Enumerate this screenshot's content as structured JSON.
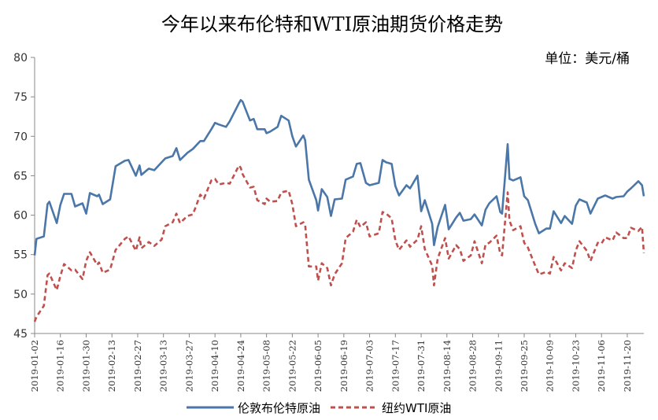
{
  "chart_data": {
    "type": "line",
    "title": "今年以来布伦特和WTI原油期货价格走势",
    "unit_label": "单位：美元/桶",
    "ylim": [
      45,
      80
    ],
    "yticks": [
      "45",
      "50",
      "55",
      "60",
      "65",
      "70",
      "75",
      "80"
    ],
    "xlim": [
      "2019-01-02",
      "2019-11-29"
    ],
    "xticks": [
      "2019-01-02",
      "2019-01-16",
      "2019-01-30",
      "2019-02-13",
      "2019-02-27",
      "2019-03-13",
      "2019-03-27",
      "2019-04-10",
      "2019-04-24",
      "2019-05-08",
      "2019-05-22",
      "2019-06-05",
      "2019-06-19",
      "2019-07-03",
      "2019-07-17",
      "2019-07-31",
      "2019-08-14",
      "2019-08-28",
      "2019-09-11",
      "2019-09-25",
      "2019-10-09",
      "2019-10-23",
      "2019-11-06",
      "2019-11-20"
    ],
    "grid": false,
    "legend": "bottom",
    "series": [
      {
        "name": "伦敦布伦特原油",
        "color": "#4a76a8",
        "style": "solid",
        "points": [
          [
            "2019-01-02",
            54.9
          ],
          [
            "2019-01-03",
            57.0
          ],
          [
            "2019-01-07",
            57.3
          ],
          [
            "2019-01-09",
            61.4
          ],
          [
            "2019-01-10",
            61.7
          ],
          [
            "2019-01-14",
            59.0
          ],
          [
            "2019-01-16",
            61.3
          ],
          [
            "2019-01-18",
            62.7
          ],
          [
            "2019-01-22",
            62.7
          ],
          [
            "2019-01-24",
            61.1
          ],
          [
            "2019-01-28",
            61.5
          ],
          [
            "2019-01-30",
            60.2
          ],
          [
            "2019-02-01",
            62.8
          ],
          [
            "2019-02-05",
            62.4
          ],
          [
            "2019-02-06",
            62.6
          ],
          [
            "2019-02-08",
            61.4
          ],
          [
            "2019-02-12",
            62.0
          ],
          [
            "2019-02-15",
            66.2
          ],
          [
            "2019-02-20",
            66.9
          ],
          [
            "2019-02-22",
            67.0
          ],
          [
            "2019-02-26",
            65.0
          ],
          [
            "2019-02-28",
            66.3
          ],
          [
            "2019-03-01",
            65.1
          ],
          [
            "2019-03-05",
            65.9
          ],
          [
            "2019-03-08",
            65.7
          ],
          [
            "2019-03-12",
            66.7
          ],
          [
            "2019-03-14",
            67.2
          ],
          [
            "2019-03-18",
            67.5
          ],
          [
            "2019-03-20",
            68.5
          ],
          [
            "2019-03-22",
            67.0
          ],
          [
            "2019-03-26",
            67.9
          ],
          [
            "2019-03-29",
            68.4
          ],
          [
            "2019-04-02",
            69.4
          ],
          [
            "2019-04-04",
            69.4
          ],
          [
            "2019-04-08",
            70.9
          ],
          [
            "2019-04-10",
            71.7
          ],
          [
            "2019-04-12",
            71.5
          ],
          [
            "2019-04-16",
            71.2
          ],
          [
            "2019-04-18",
            71.9
          ],
          [
            "2019-04-23",
            74.2
          ],
          [
            "2019-04-24",
            74.6
          ],
          [
            "2019-04-25",
            74.4
          ],
          [
            "2019-04-29",
            72.0
          ],
          [
            "2019-05-01",
            72.2
          ],
          [
            "2019-05-03",
            70.9
          ],
          [
            "2019-05-07",
            70.9
          ],
          [
            "2019-05-08",
            70.4
          ],
          [
            "2019-05-10",
            70.6
          ],
          [
            "2019-05-14",
            71.2
          ],
          [
            "2019-05-16",
            72.6
          ],
          [
            "2019-05-20",
            72.0
          ],
          [
            "2019-05-22",
            70.0
          ],
          [
            "2019-05-24",
            68.7
          ],
          [
            "2019-05-28",
            70.1
          ],
          [
            "2019-05-29",
            69.5
          ],
          [
            "2019-05-31",
            64.5
          ],
          [
            "2019-06-04",
            61.9
          ],
          [
            "2019-06-05",
            60.6
          ],
          [
            "2019-06-07",
            63.3
          ],
          [
            "2019-06-10",
            62.3
          ],
          [
            "2019-06-12",
            59.9
          ],
          [
            "2019-06-14",
            62.0
          ],
          [
            "2019-06-18",
            62.1
          ],
          [
            "2019-06-20",
            64.5
          ],
          [
            "2019-06-24",
            64.9
          ],
          [
            "2019-06-26",
            66.5
          ],
          [
            "2019-06-28",
            66.6
          ],
          [
            "2019-07-01",
            64.1
          ],
          [
            "2019-07-03",
            63.8
          ],
          [
            "2019-07-08",
            64.1
          ],
          [
            "2019-07-10",
            67.0
          ],
          [
            "2019-07-12",
            66.7
          ],
          [
            "2019-07-15",
            66.5
          ],
          [
            "2019-07-17",
            63.7
          ],
          [
            "2019-07-19",
            62.5
          ],
          [
            "2019-07-23",
            63.8
          ],
          [
            "2019-07-25",
            63.4
          ],
          [
            "2019-07-29",
            65.0
          ],
          [
            "2019-07-31",
            60.5
          ],
          [
            "2019-08-02",
            61.9
          ],
          [
            "2019-08-06",
            58.9
          ],
          [
            "2019-08-07",
            56.2
          ],
          [
            "2019-08-09",
            58.5
          ],
          [
            "2019-08-13",
            61.3
          ],
          [
            "2019-08-15",
            58.2
          ],
          [
            "2019-08-19",
            59.7
          ],
          [
            "2019-08-21",
            60.3
          ],
          [
            "2019-08-23",
            59.3
          ],
          [
            "2019-08-27",
            59.5
          ],
          [
            "2019-08-29",
            60.1
          ],
          [
            "2019-09-02",
            58.7
          ],
          [
            "2019-09-04",
            60.7
          ],
          [
            "2019-09-06",
            61.5
          ],
          [
            "2019-09-10",
            62.4
          ],
          [
            "2019-09-12",
            60.4
          ],
          [
            "2019-09-13",
            60.2
          ],
          [
            "2019-09-16",
            69.0
          ],
          [
            "2019-09-17",
            64.6
          ],
          [
            "2019-09-19",
            64.4
          ],
          [
            "2019-09-23",
            64.8
          ],
          [
            "2019-09-25",
            62.4
          ],
          [
            "2019-09-27",
            61.9
          ],
          [
            "2019-10-01",
            58.9
          ],
          [
            "2019-10-03",
            57.7
          ],
          [
            "2019-10-07",
            58.3
          ],
          [
            "2019-10-09",
            58.3
          ],
          [
            "2019-10-11",
            60.5
          ],
          [
            "2019-10-15",
            59.0
          ],
          [
            "2019-10-17",
            59.9
          ],
          [
            "2019-10-21",
            58.9
          ],
          [
            "2019-10-23",
            61.2
          ],
          [
            "2019-10-25",
            62.0
          ],
          [
            "2019-10-29",
            61.6
          ],
          [
            "2019-10-31",
            60.2
          ],
          [
            "2019-11-04",
            62.1
          ],
          [
            "2019-11-06",
            62.3
          ],
          [
            "2019-11-08",
            62.5
          ],
          [
            "2019-11-12",
            62.1
          ],
          [
            "2019-11-14",
            62.3
          ],
          [
            "2019-11-18",
            62.4
          ],
          [
            "2019-11-20",
            63.0
          ],
          [
            "2019-11-22",
            63.4
          ],
          [
            "2019-11-26",
            64.3
          ],
          [
            "2019-11-28",
            63.8
          ],
          [
            "2019-11-29",
            62.4
          ]
        ]
      },
      {
        "name": "纽约WTI原油",
        "color": "#c0504d",
        "style": "dashed",
        "points": [
          [
            "2019-01-02",
            46.5
          ],
          [
            "2019-01-03",
            47.1
          ],
          [
            "2019-01-07",
            48.5
          ],
          [
            "2019-01-09",
            52.4
          ],
          [
            "2019-01-10",
            52.6
          ],
          [
            "2019-01-14",
            50.5
          ],
          [
            "2019-01-16",
            52.3
          ],
          [
            "2019-01-18",
            53.8
          ],
          [
            "2019-01-22",
            53.0
          ],
          [
            "2019-01-24",
            53.1
          ],
          [
            "2019-01-28",
            51.9
          ],
          [
            "2019-01-30",
            54.2
          ],
          [
            "2019-02-01",
            55.3
          ],
          [
            "2019-02-05",
            53.7
          ],
          [
            "2019-02-06",
            54.0
          ],
          [
            "2019-02-08",
            52.7
          ],
          [
            "2019-02-12",
            53.1
          ],
          [
            "2019-02-15",
            55.6
          ],
          [
            "2019-02-20",
            57.0
          ],
          [
            "2019-02-22",
            57.3
          ],
          [
            "2019-02-26",
            55.5
          ],
          [
            "2019-02-28",
            57.2
          ],
          [
            "2019-03-01",
            55.8
          ],
          [
            "2019-03-05",
            56.6
          ],
          [
            "2019-03-08",
            56.1
          ],
          [
            "2019-03-12",
            56.9
          ],
          [
            "2019-03-14",
            58.6
          ],
          [
            "2019-03-18",
            59.1
          ],
          [
            "2019-03-20",
            60.2
          ],
          [
            "2019-03-22",
            59.0
          ],
          [
            "2019-03-26",
            59.9
          ],
          [
            "2019-03-29",
            60.1
          ],
          [
            "2019-04-02",
            62.6
          ],
          [
            "2019-04-04",
            62.1
          ],
          [
            "2019-04-08",
            64.4
          ],
          [
            "2019-04-10",
            64.6
          ],
          [
            "2019-04-12",
            63.9
          ],
          [
            "2019-04-16",
            64.1
          ],
          [
            "2019-04-18",
            64.0
          ],
          [
            "2019-04-23",
            66.3
          ],
          [
            "2019-04-24",
            66.0
          ],
          [
            "2019-04-25",
            65.2
          ],
          [
            "2019-04-29",
            63.5
          ],
          [
            "2019-05-01",
            63.6
          ],
          [
            "2019-05-03",
            61.9
          ],
          [
            "2019-05-07",
            61.4
          ],
          [
            "2019-05-08",
            62.1
          ],
          [
            "2019-05-10",
            61.7
          ],
          [
            "2019-05-14",
            61.8
          ],
          [
            "2019-05-16",
            62.9
          ],
          [
            "2019-05-20",
            63.1
          ],
          [
            "2019-05-22",
            61.4
          ],
          [
            "2019-05-24",
            58.6
          ],
          [
            "2019-05-28",
            59.1
          ],
          [
            "2019-05-29",
            58.8
          ],
          [
            "2019-05-31",
            53.5
          ],
          [
            "2019-06-04",
            53.5
          ],
          [
            "2019-06-05",
            51.7
          ],
          [
            "2019-06-07",
            53.9
          ],
          [
            "2019-06-10",
            53.3
          ],
          [
            "2019-06-12",
            51.1
          ],
          [
            "2019-06-14",
            52.5
          ],
          [
            "2019-06-18",
            53.9
          ],
          [
            "2019-06-20",
            57.1
          ],
          [
            "2019-06-24",
            57.9
          ],
          [
            "2019-06-26",
            59.4
          ],
          [
            "2019-06-28",
            58.5
          ],
          [
            "2019-07-01",
            59.1
          ],
          [
            "2019-07-03",
            57.3
          ],
          [
            "2019-07-08",
            57.7
          ],
          [
            "2019-07-10",
            60.4
          ],
          [
            "2019-07-12",
            60.2
          ],
          [
            "2019-07-15",
            59.6
          ],
          [
            "2019-07-17",
            56.8
          ],
          [
            "2019-07-19",
            55.6
          ],
          [
            "2019-07-23",
            56.8
          ],
          [
            "2019-07-25",
            56.0
          ],
          [
            "2019-07-29",
            56.9
          ],
          [
            "2019-07-31",
            58.6
          ],
          [
            "2019-08-02",
            55.7
          ],
          [
            "2019-08-06",
            53.6
          ],
          [
            "2019-08-07",
            51.1
          ],
          [
            "2019-08-09",
            54.5
          ],
          [
            "2019-08-13",
            57.1
          ],
          [
            "2019-08-15",
            54.5
          ],
          [
            "2019-08-19",
            56.2
          ],
          [
            "2019-08-21",
            55.7
          ],
          [
            "2019-08-23",
            54.2
          ],
          [
            "2019-08-27",
            54.9
          ],
          [
            "2019-08-29",
            56.7
          ],
          [
            "2019-09-02",
            53.9
          ],
          [
            "2019-09-04",
            56.3
          ],
          [
            "2019-09-06",
            56.5
          ],
          [
            "2019-09-10",
            57.4
          ],
          [
            "2019-09-12",
            55.1
          ],
          [
            "2019-09-13",
            54.9
          ],
          [
            "2019-09-16",
            62.9
          ],
          [
            "2019-09-17",
            59.3
          ],
          [
            "2019-09-19",
            58.1
          ],
          [
            "2019-09-23",
            58.6
          ],
          [
            "2019-09-25",
            56.5
          ],
          [
            "2019-09-27",
            55.9
          ],
          [
            "2019-10-01",
            53.6
          ],
          [
            "2019-10-03",
            52.5
          ],
          [
            "2019-10-07",
            52.8
          ],
          [
            "2019-10-09",
            52.6
          ],
          [
            "2019-10-11",
            54.7
          ],
          [
            "2019-10-15",
            53.0
          ],
          [
            "2019-10-17",
            53.9
          ],
          [
            "2019-10-21",
            53.3
          ],
          [
            "2019-10-23",
            55.5
          ],
          [
            "2019-10-25",
            56.7
          ],
          [
            "2019-10-29",
            55.5
          ],
          [
            "2019-10-31",
            54.2
          ],
          [
            "2019-11-04",
            56.5
          ],
          [
            "2019-11-06",
            56.4
          ],
          [
            "2019-11-08",
            57.2
          ],
          [
            "2019-11-12",
            56.8
          ],
          [
            "2019-11-14",
            57.8
          ],
          [
            "2019-11-18",
            57.1
          ],
          [
            "2019-11-20",
            57.1
          ],
          [
            "2019-11-22",
            58.4
          ],
          [
            "2019-11-26",
            58.0
          ],
          [
            "2019-11-28",
            58.5
          ],
          [
            "2019-11-29",
            55.2
          ]
        ]
      }
    ]
  }
}
